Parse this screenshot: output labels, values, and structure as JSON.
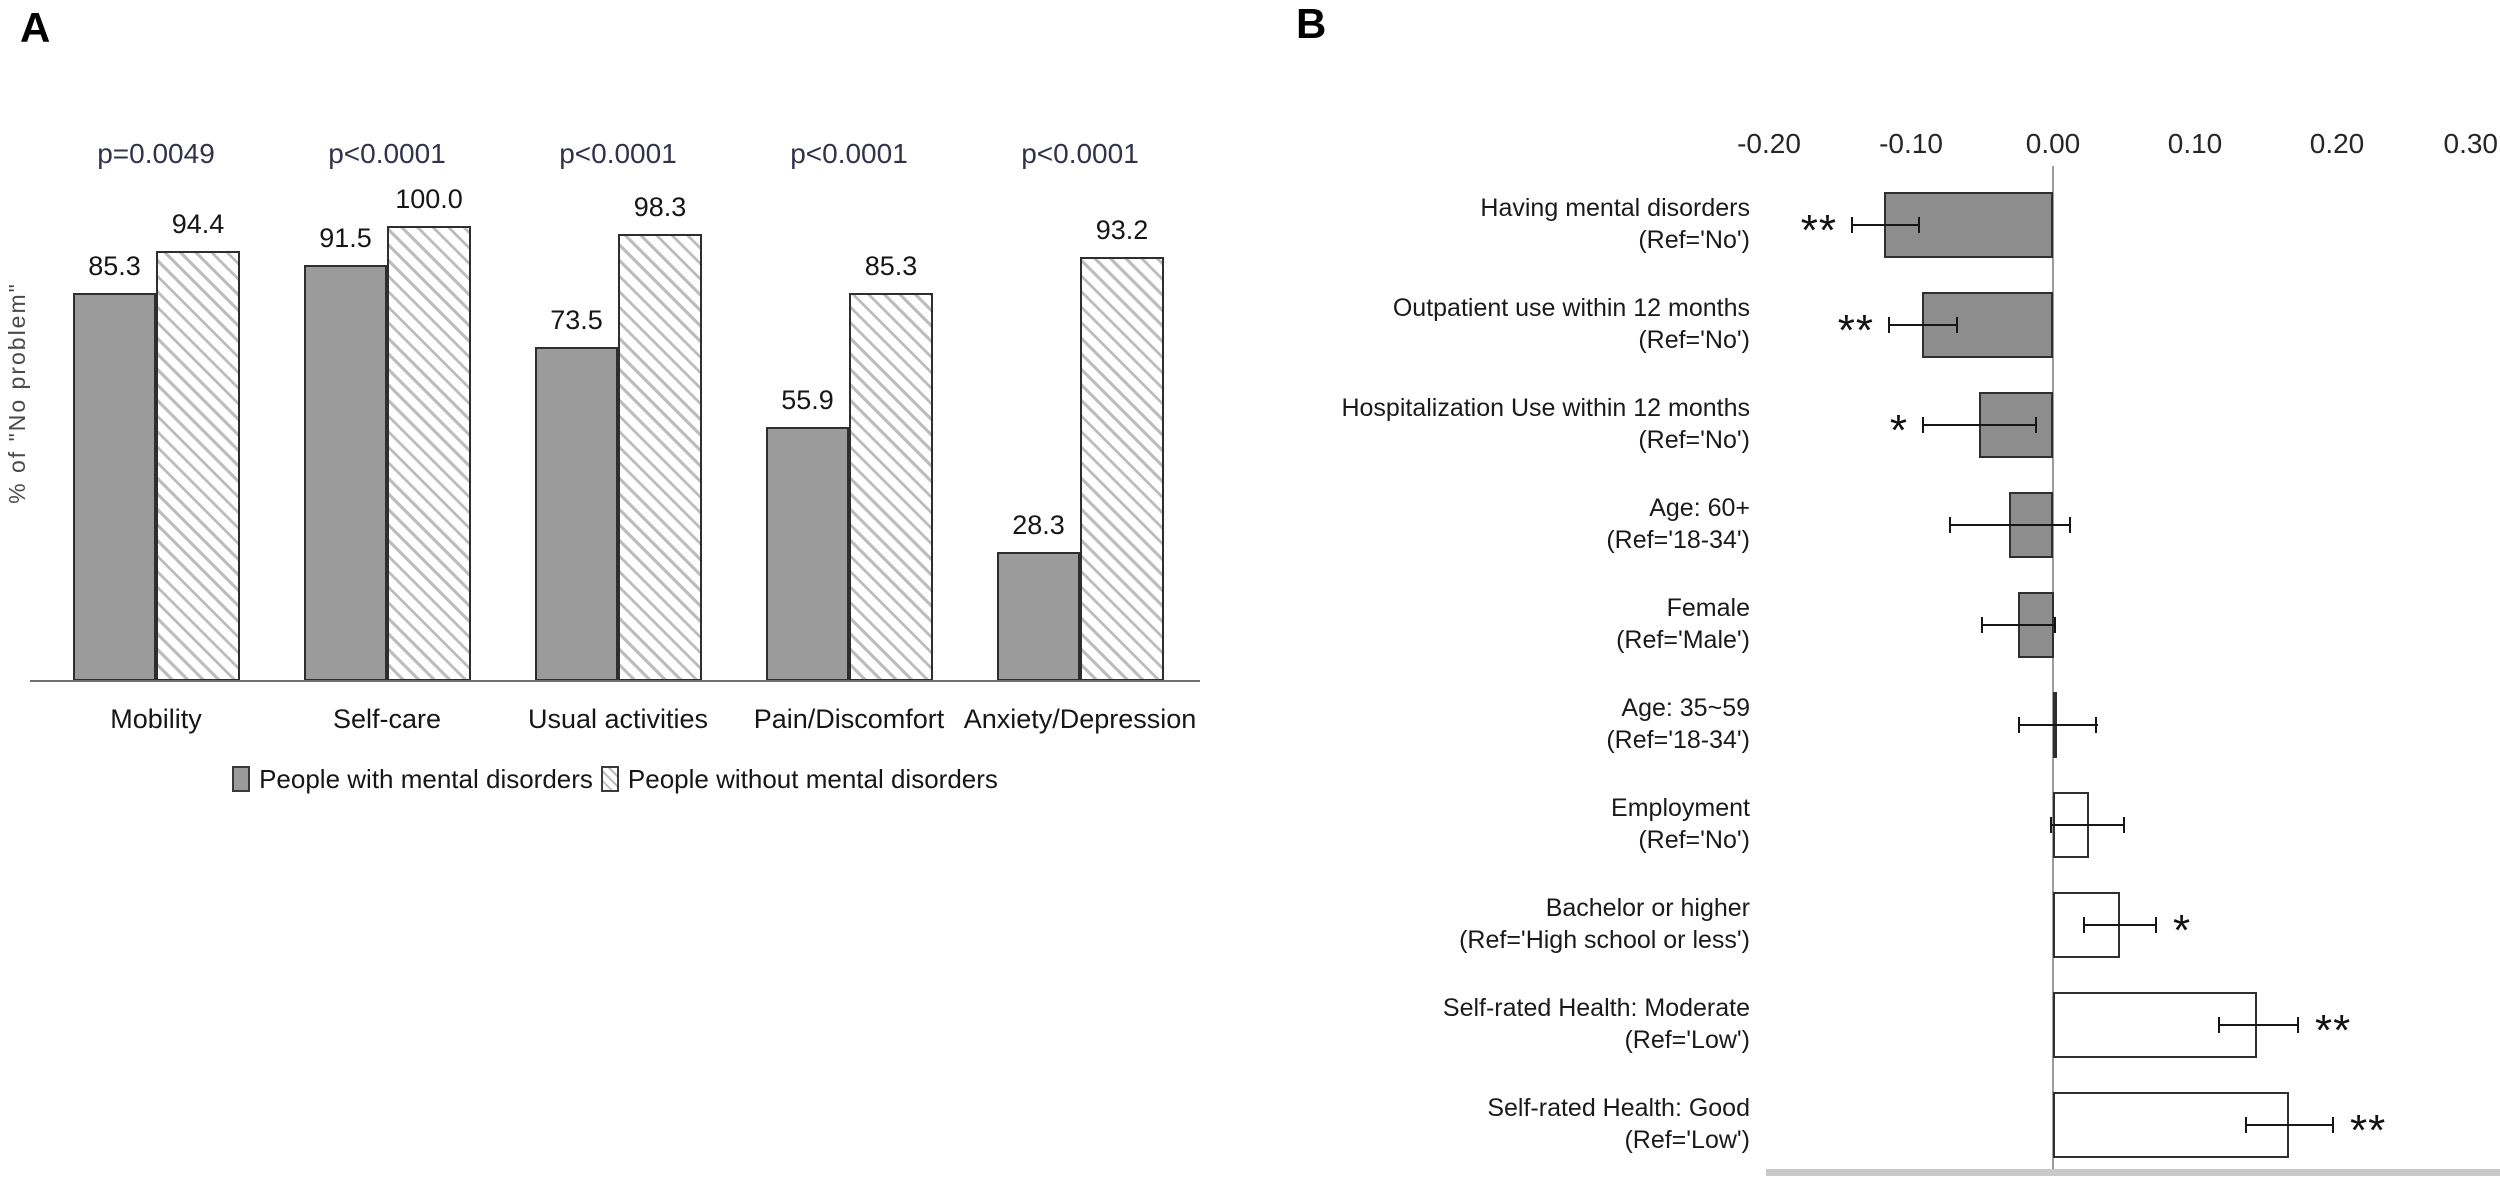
{
  "figure": {
    "panel_a_label": "A",
    "panel_b_label": "B"
  },
  "colors": {
    "bar_solid_gray_a": "#9b9b9b",
    "bar_border": "#2e2e2e",
    "hatch_stripe": "#bdbdbd",
    "bar_gray_b": "#8d8d8d",
    "bar_white_b": "#ffffff",
    "p_value_text": "#32324b",
    "axis_line_a": "#707070",
    "axis_line_b": "#9c9c9c",
    "baseline_strip_b": "#c9c9c9",
    "error_bar": "#161616",
    "text": "#1c1c1c"
  },
  "chart_data": [
    {
      "type": "bar",
      "panel": "A",
      "orientation": "vertical",
      "ylabel": "% of \"No problem\"",
      "ylim": [
        0,
        100
      ],
      "grid": false,
      "legend_position": "bottom",
      "value_labels_shown": true,
      "categories": [
        "Mobility",
        "Self-care",
        "Usual activities",
        "Pain/Discomfort",
        "Anxiety/Depression"
      ],
      "p_values": [
        "p=0.0049",
        "p<0.0001",
        "p<0.0001",
        "p<0.0001",
        "p<0.0001"
      ],
      "series": [
        {
          "name": "People with mental disorders",
          "style": "solid-gray",
          "values": [
            85.3,
            91.5,
            73.5,
            55.9,
            28.3
          ]
        },
        {
          "name": "People without mental disorders",
          "style": "hatched",
          "values": [
            94.4,
            100.0,
            98.3,
            85.3,
            93.2
          ]
        }
      ]
    },
    {
      "type": "bar",
      "panel": "B",
      "orientation": "horizontal",
      "xlim": [
        -0.2,
        0.3
      ],
      "x_ticks": [
        "-0.20",
        "-0.10",
        "0.00",
        "0.10",
        "0.20",
        "0.30"
      ],
      "x_tick_values": [
        -0.2,
        -0.1,
        0.0,
        0.1,
        0.2,
        0.3
      ],
      "grid": false,
      "rows": [
        {
          "label": "Having mental disorders",
          "ref": "(Ref='No')",
          "value": -0.119,
          "ci": [
            -0.142,
            -0.094
          ],
          "sig": "**",
          "fill": "gray"
        },
        {
          "label": "Outpatient use within 12 months",
          "ref": "(Ref='No')",
          "value": -0.092,
          "ci": [
            -0.116,
            -0.067
          ],
          "sig": "**",
          "fill": "gray"
        },
        {
          "label": "Hospitalization Use within 12 months",
          "ref": "(Ref='No')",
          "value": -0.052,
          "ci": [
            -0.092,
            -0.011
          ],
          "sig": "*",
          "fill": "gray"
        },
        {
          "label": "Age: 60+",
          "ref": "(Ref='18-34')",
          "value": -0.031,
          "ci": [
            -0.073,
            0.013
          ],
          "sig": "",
          "fill": "gray"
        },
        {
          "label": "Female",
          "ref": "(Ref='Male')",
          "value": -0.025,
          "ci": [
            -0.051,
            0.002
          ],
          "sig": "",
          "fill": "gray"
        },
        {
          "label": "Age: 35~59",
          "ref": "(Ref='18-34')",
          "value": 0.003,
          "ci": [
            -0.025,
            0.031
          ],
          "sig": "",
          "fill": "white"
        },
        {
          "label": "Employment",
          "ref": "(Ref='No')",
          "value": 0.025,
          "ci": [
            -0.002,
            0.051
          ],
          "sig": "",
          "fill": "white"
        },
        {
          "label": "Bachelor or higher",
          "ref": "(Ref='High school or less')",
          "value": 0.047,
          "ci": [
            0.021,
            0.073
          ],
          "sig": "*",
          "fill": "white"
        },
        {
          "label": "Self-rated Health: Moderate",
          "ref": "(Ref='Low')",
          "value": 0.144,
          "ci": [
            0.116,
            0.173
          ],
          "sig": "**",
          "fill": "white"
        },
        {
          "label": "Self-rated Health: Good",
          "ref": "(Ref='Low')",
          "value": 0.166,
          "ci": [
            0.135,
            0.198
          ],
          "sig": "**",
          "fill": "white"
        }
      ]
    }
  ]
}
